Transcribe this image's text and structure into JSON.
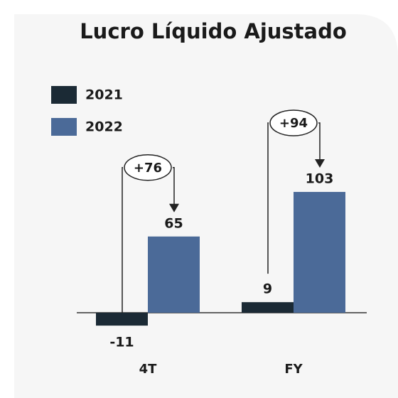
{
  "chart_data": {
    "type": "bar",
    "title": "Lucro Líquido Ajustado",
    "categories": [
      "4T",
      "FY"
    ],
    "series": [
      {
        "name": "2021",
        "color": "#1b2a35",
        "values": [
          -11,
          9
        ]
      },
      {
        "name": "2022",
        "color": "#4b6a98",
        "values": [
          65,
          103
        ]
      }
    ],
    "annotations": [
      "+76",
      "+94"
    ],
    "legend": "top-left"
  }
}
